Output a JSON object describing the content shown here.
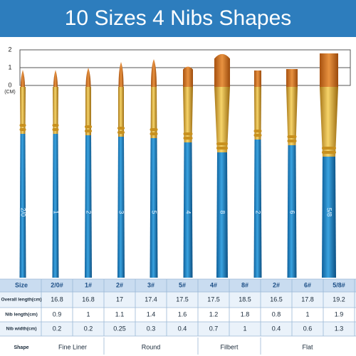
{
  "header": {
    "title": "10 Sizes 4 Nibs Shapes"
  },
  "scale": {
    "labels": [
      "2",
      "1",
      "0"
    ],
    "unit": "(CM)"
  },
  "brushes": {
    "labels": [
      "2/0",
      "1",
      "2",
      "3",
      "5",
      "4",
      "8",
      "2",
      "6",
      "5/8"
    ]
  },
  "table": {
    "header": [
      "Size",
      "2/0#",
      "1#",
      "2#",
      "3#",
      "5#",
      "4#",
      "8#",
      "2#",
      "6#",
      "5/8#"
    ],
    "rows": [
      [
        "Overall length(cm)",
        "16.8",
        "16.8",
        "17",
        "17.4",
        "17.5",
        "17.5",
        "18.5",
        "16.5",
        "17.8",
        "19.2"
      ],
      [
        "Nib length(cm)",
        "0.9",
        "1",
        "1.1",
        "1.4",
        "1.6",
        "1.2",
        "1.8",
        "0.8",
        "1",
        "1.9"
      ],
      [
        "Nib width(cm)",
        "0.2",
        "0.2",
        "0.25",
        "0.3",
        "0.4",
        "0.7",
        "1",
        "0.4",
        "0.6",
        "1.3"
      ]
    ],
    "shape_row": {
      "label": "Shape",
      "groups": [
        "Fine Liner",
        "Round",
        "Filbert",
        "Flat"
      ]
    }
  }
}
